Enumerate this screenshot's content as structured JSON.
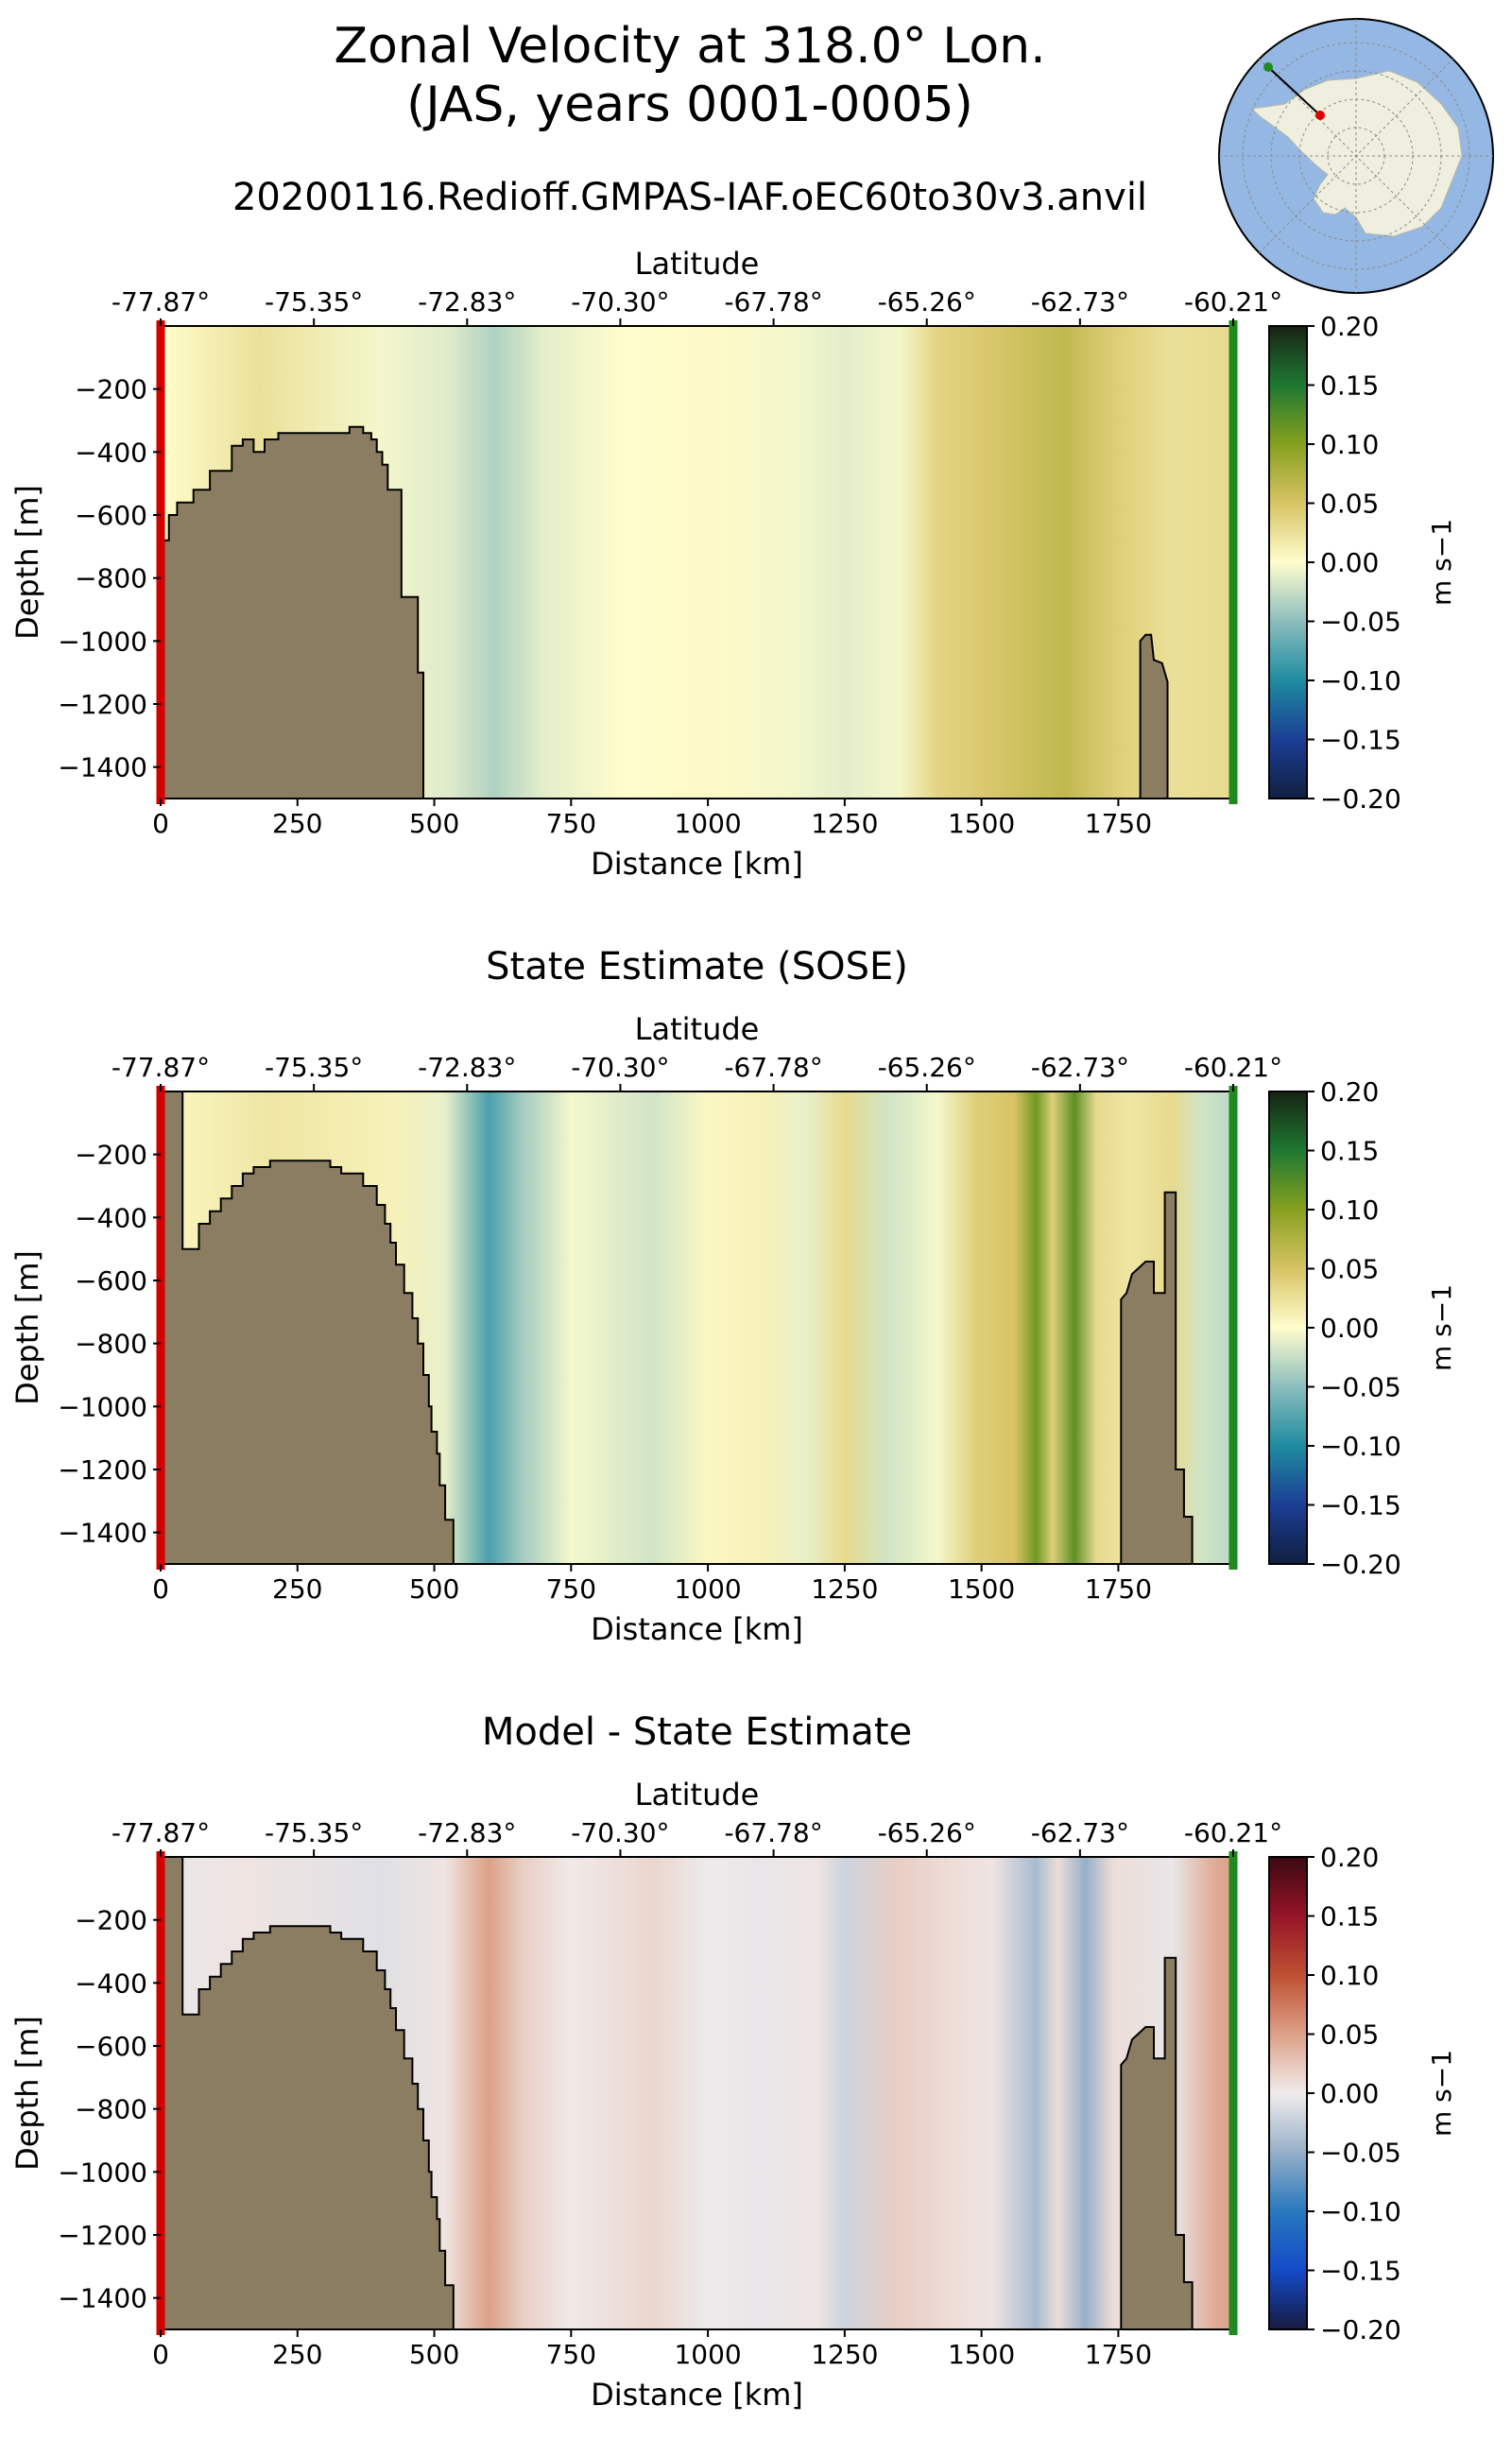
{
  "figure": {
    "title": "Zonal Velocity at 318.0° Lon.\n(JAS, years 0001-0005)",
    "run_name": "20200116.Redioff.GMPAS-IAF.oEC60to30v3.anvil"
  },
  "chart_data": [
    {
      "type": "heatmap",
      "title": "",
      "xlabel": "Distance [km]",
      "ylabel": "Depth [m]",
      "top_axis_label": "Latitude",
      "xlim": [
        0,
        1960
      ],
      "ylim": [
        -1500,
        0
      ],
      "xticks": [
        0,
        250,
        500,
        750,
        1000,
        1250,
        1500,
        1750
      ],
      "yticks": [
        -200,
        -400,
        -600,
        -800,
        -1000,
        -1200,
        -1400
      ],
      "latitude_ticks": [
        "-77.87°",
        "-75.35°",
        "-72.83°",
        "-70.30°",
        "-67.78°",
        "-65.26°",
        "-62.73°",
        "-60.21°"
      ],
      "colorbar": {
        "label": "m s−1",
        "colormap": "delta",
        "vmin": -0.2,
        "vmax": 0.2,
        "ticks": [
          "0.20",
          "0.15",
          "0.10",
          "0.05",
          "0.00",
          "−0.05",
          "−0.10",
          "−0.15",
          "−0.20"
        ]
      },
      "field_columns": [
        {
          "x": 0,
          "v": 0.0
        },
        {
          "x": 180,
          "v": 0.025
        },
        {
          "x": 400,
          "v": -0.005
        },
        {
          "x": 530,
          "v": -0.015
        },
        {
          "x": 610,
          "v": -0.035
        },
        {
          "x": 700,
          "v": -0.012
        },
        {
          "x": 850,
          "v": 0.0
        },
        {
          "x": 1000,
          "v": 0.003
        },
        {
          "x": 1150,
          "v": -0.005
        },
        {
          "x": 1250,
          "v": -0.012
        },
        {
          "x": 1350,
          "v": -0.005
        },
        {
          "x": 1420,
          "v": 0.035
        },
        {
          "x": 1500,
          "v": 0.045
        },
        {
          "x": 1650,
          "v": 0.065
        },
        {
          "x": 1750,
          "v": 0.04
        },
        {
          "x": 1850,
          "v": 0.025
        },
        {
          "x": 1960,
          "v": 0.03
        }
      ],
      "bathymetry": [
        [
          0,
          -680
        ],
        [
          15,
          -680
        ],
        [
          15,
          -600
        ],
        [
          30,
          -600
        ],
        [
          30,
          -560
        ],
        [
          60,
          -560
        ],
        [
          60,
          -520
        ],
        [
          90,
          -520
        ],
        [
          90,
          -460
        ],
        [
          130,
          -460
        ],
        [
          130,
          -380
        ],
        [
          150,
          -380
        ],
        [
          150,
          -360
        ],
        [
          170,
          -360
        ],
        [
          170,
          -400
        ],
        [
          190,
          -400
        ],
        [
          190,
          -360
        ],
        [
          215,
          -360
        ],
        [
          215,
          -340
        ],
        [
          345,
          -340
        ],
        [
          345,
          -320
        ],
        [
          370,
          -320
        ],
        [
          370,
          -340
        ],
        [
          385,
          -340
        ],
        [
          385,
          -360
        ],
        [
          395,
          -360
        ],
        [
          395,
          -400
        ],
        [
          405,
          -400
        ],
        [
          405,
          -440
        ],
        [
          415,
          -440
        ],
        [
          415,
          -520
        ],
        [
          440,
          -520
        ],
        [
          440,
          -860
        ],
        [
          470,
          -860
        ],
        [
          470,
          -1100
        ],
        [
          480,
          -1100
        ],
        [
          480,
          -1500
        ]
      ],
      "bathymetry_right": [
        [
          1790,
          -1500
        ],
        [
          1790,
          -1000
        ],
        [
          1800,
          -980
        ],
        [
          1810,
          -980
        ],
        [
          1815,
          -1060
        ],
        [
          1830,
          -1070
        ],
        [
          1840,
          -1130
        ],
        [
          1840,
          -1500
        ]
      ],
      "markers": {
        "left_color": "#d40000",
        "right_color": "#1f8a1f"
      }
    },
    {
      "type": "heatmap",
      "title": "State Estimate (SOSE)",
      "xlabel": "Distance [km]",
      "ylabel": "Depth [m]",
      "top_axis_label": "Latitude",
      "xlim": [
        0,
        1960
      ],
      "ylim": [
        -1500,
        0
      ],
      "xticks": [
        0,
        250,
        500,
        750,
        1000,
        1250,
        1500,
        1750
      ],
      "yticks": [
        -200,
        -400,
        -600,
        -800,
        -1000,
        -1200,
        -1400
      ],
      "latitude_ticks": [
        "-77.87°",
        "-75.35°",
        "-72.83°",
        "-70.30°",
        "-67.78°",
        "-65.26°",
        "-62.73°",
        "-60.21°"
      ],
      "colorbar": {
        "label": "m s−1",
        "colormap": "delta",
        "vmin": -0.2,
        "vmax": 0.2,
        "ticks": [
          "0.20",
          "0.15",
          "0.10",
          "0.05",
          "0.00",
          "−0.05",
          "−0.10",
          "−0.15",
          "−0.20"
        ]
      },
      "field_columns": [
        {
          "x": 0,
          "v": 0.005
        },
        {
          "x": 200,
          "v": 0.02
        },
        {
          "x": 420,
          "v": 0.01
        },
        {
          "x": 520,
          "v": -0.01
        },
        {
          "x": 600,
          "v": -0.08
        },
        {
          "x": 660,
          "v": -0.04
        },
        {
          "x": 750,
          "v": -0.005
        },
        {
          "x": 900,
          "v": -0.02
        },
        {
          "x": 1000,
          "v": 0.005
        },
        {
          "x": 1100,
          "v": 0.01
        },
        {
          "x": 1180,
          "v": -0.01
        },
        {
          "x": 1250,
          "v": 0.03
        },
        {
          "x": 1330,
          "v": -0.02
        },
        {
          "x": 1420,
          "v": -0.005
        },
        {
          "x": 1490,
          "v": 0.04
        },
        {
          "x": 1560,
          "v": 0.05
        },
        {
          "x": 1600,
          "v": 0.11
        },
        {
          "x": 1630,
          "v": 0.04
        },
        {
          "x": 1670,
          "v": 0.12
        },
        {
          "x": 1710,
          "v": 0.03
        },
        {
          "x": 1770,
          "v": 0.02
        },
        {
          "x": 1850,
          "v": 0.03
        },
        {
          "x": 1900,
          "v": -0.02
        },
        {
          "x": 1960,
          "v": -0.03
        }
      ],
      "bathymetry": [
        [
          0,
          -1500
        ],
        [
          0,
          0
        ],
        [
          40,
          0
        ],
        [
          40,
          -500
        ],
        [
          70,
          -500
        ],
        [
          70,
          -420
        ],
        [
          90,
          -420
        ],
        [
          90,
          -380
        ],
        [
          110,
          -380
        ],
        [
          110,
          -340
        ],
        [
          130,
          -340
        ],
        [
          130,
          -300
        ],
        [
          150,
          -300
        ],
        [
          150,
          -260
        ],
        [
          170,
          -260
        ],
        [
          170,
          -240
        ],
        [
          200,
          -240
        ],
        [
          200,
          -220
        ],
        [
          310,
          -220
        ],
        [
          310,
          -240
        ],
        [
          330,
          -240
        ],
        [
          330,
          -260
        ],
        [
          370,
          -260
        ],
        [
          370,
          -300
        ],
        [
          395,
          -300
        ],
        [
          395,
          -360
        ],
        [
          410,
          -360
        ],
        [
          410,
          -420
        ],
        [
          420,
          -420
        ],
        [
          420,
          -480
        ],
        [
          430,
          -480
        ],
        [
          430,
          -550
        ],
        [
          445,
          -550
        ],
        [
          445,
          -640
        ],
        [
          460,
          -640
        ],
        [
          460,
          -720
        ],
        [
          470,
          -720
        ],
        [
          470,
          -800
        ],
        [
          480,
          -800
        ],
        [
          480,
          -900
        ],
        [
          490,
          -900
        ],
        [
          490,
          -1000
        ],
        [
          495,
          -1000
        ],
        [
          495,
          -1080
        ],
        [
          505,
          -1080
        ],
        [
          505,
          -1150
        ],
        [
          510,
          -1150
        ],
        [
          510,
          -1250
        ],
        [
          520,
          -1250
        ],
        [
          520,
          -1360
        ],
        [
          535,
          -1360
        ],
        [
          535,
          -1500
        ]
      ],
      "bathymetry_right": [
        [
          1755,
          -1500
        ],
        [
          1755,
          -660
        ],
        [
          1765,
          -640
        ],
        [
          1775,
          -580
        ],
        [
          1800,
          -540
        ],
        [
          1815,
          -540
        ],
        [
          1815,
          -640
        ],
        [
          1835,
          -640
        ],
        [
          1835,
          -320
        ],
        [
          1855,
          -320
        ],
        [
          1855,
          -1200
        ],
        [
          1870,
          -1200
        ],
        [
          1870,
          -1350
        ],
        [
          1885,
          -1350
        ],
        [
          1885,
          -1500
        ]
      ],
      "markers": {
        "left_color": "#d40000",
        "right_color": "#1f8a1f"
      }
    },
    {
      "type": "heatmap",
      "title": "Model - State Estimate",
      "xlabel": "Distance [km]",
      "ylabel": "Depth [m]",
      "top_axis_label": "Latitude",
      "xlim": [
        0,
        1960
      ],
      "ylim": [
        -1500,
        0
      ],
      "xticks": [
        0,
        250,
        500,
        750,
        1000,
        1250,
        1500,
        1750
      ],
      "yticks": [
        -200,
        -400,
        -600,
        -800,
        -1000,
        -1200,
        -1400
      ],
      "latitude_ticks": [
        "-77.87°",
        "-75.35°",
        "-72.83°",
        "-70.30°",
        "-67.78°",
        "-65.26°",
        "-62.73°",
        "-60.21°"
      ],
      "colorbar": {
        "label": "m s−1",
        "colormap": "balance",
        "vmin": -0.2,
        "vmax": 0.2,
        "ticks": [
          "0.20",
          "0.15",
          "0.10",
          "0.05",
          "0.00",
          "−0.05",
          "−0.10",
          "−0.15",
          "−0.20"
        ]
      },
      "field_columns": [
        {
          "x": 0,
          "v": -0.005
        },
        {
          "x": 150,
          "v": 0.005
        },
        {
          "x": 400,
          "v": -0.01
        },
        {
          "x": 520,
          "v": 0.005
        },
        {
          "x": 600,
          "v": 0.05
        },
        {
          "x": 660,
          "v": 0.02
        },
        {
          "x": 750,
          "v": 0.002
        },
        {
          "x": 900,
          "v": 0.015
        },
        {
          "x": 1000,
          "v": -0.002
        },
        {
          "x": 1100,
          "v": -0.005
        },
        {
          "x": 1200,
          "v": 0.005
        },
        {
          "x": 1250,
          "v": -0.02
        },
        {
          "x": 1350,
          "v": 0.02
        },
        {
          "x": 1450,
          "v": 0.01
        },
        {
          "x": 1520,
          "v": 0.005
        },
        {
          "x": 1600,
          "v": -0.04
        },
        {
          "x": 1640,
          "v": 0.01
        },
        {
          "x": 1690,
          "v": -0.05
        },
        {
          "x": 1740,
          "v": 0.01
        },
        {
          "x": 1850,
          "v": -0.005
        },
        {
          "x": 1920,
          "v": 0.04
        },
        {
          "x": 1960,
          "v": 0.05
        }
      ],
      "bathymetry": [
        [
          0,
          -1500
        ],
        [
          0,
          0
        ],
        [
          40,
          0
        ],
        [
          40,
          -500
        ],
        [
          70,
          -500
        ],
        [
          70,
          -420
        ],
        [
          90,
          -420
        ],
        [
          90,
          -380
        ],
        [
          110,
          -380
        ],
        [
          110,
          -340
        ],
        [
          130,
          -340
        ],
        [
          130,
          -300
        ],
        [
          150,
          -300
        ],
        [
          150,
          -260
        ],
        [
          170,
          -260
        ],
        [
          170,
          -240
        ],
        [
          200,
          -240
        ],
        [
          200,
          -220
        ],
        [
          310,
          -220
        ],
        [
          310,
          -240
        ],
        [
          330,
          -240
        ],
        [
          330,
          -260
        ],
        [
          370,
          -260
        ],
        [
          370,
          -300
        ],
        [
          395,
          -300
        ],
        [
          395,
          -360
        ],
        [
          410,
          -360
        ],
        [
          410,
          -420
        ],
        [
          420,
          -420
        ],
        [
          420,
          -480
        ],
        [
          430,
          -480
        ],
        [
          430,
          -550
        ],
        [
          445,
          -550
        ],
        [
          445,
          -640
        ],
        [
          460,
          -640
        ],
        [
          460,
          -720
        ],
        [
          470,
          -720
        ],
        [
          470,
          -800
        ],
        [
          480,
          -800
        ],
        [
          480,
          -900
        ],
        [
          490,
          -900
        ],
        [
          490,
          -1000
        ],
        [
          495,
          -1000
        ],
        [
          495,
          -1080
        ],
        [
          505,
          -1080
        ],
        [
          505,
          -1150
        ],
        [
          510,
          -1150
        ],
        [
          510,
          -1250
        ],
        [
          520,
          -1250
        ],
        [
          520,
          -1360
        ],
        [
          535,
          -1360
        ],
        [
          535,
          -1500
        ]
      ],
      "bathymetry_right": [
        [
          1755,
          -1500
        ],
        [
          1755,
          -660
        ],
        [
          1765,
          -640
        ],
        [
          1775,
          -580
        ],
        [
          1800,
          -540
        ],
        [
          1815,
          -540
        ],
        [
          1815,
          -640
        ],
        [
          1835,
          -640
        ],
        [
          1835,
          -320
        ],
        [
          1855,
          -320
        ],
        [
          1855,
          -1200
        ],
        [
          1870,
          -1200
        ],
        [
          1870,
          -1350
        ],
        [
          1885,
          -1350
        ],
        [
          1885,
          -1500
        ]
      ],
      "markers": {
        "left_color": "#d40000",
        "right_color": "#1f8a1f"
      }
    }
  ],
  "colors": {
    "land": "#8b7d62",
    "ocean_map": "#94b8e3",
    "ice_map": "#efefdf"
  }
}
